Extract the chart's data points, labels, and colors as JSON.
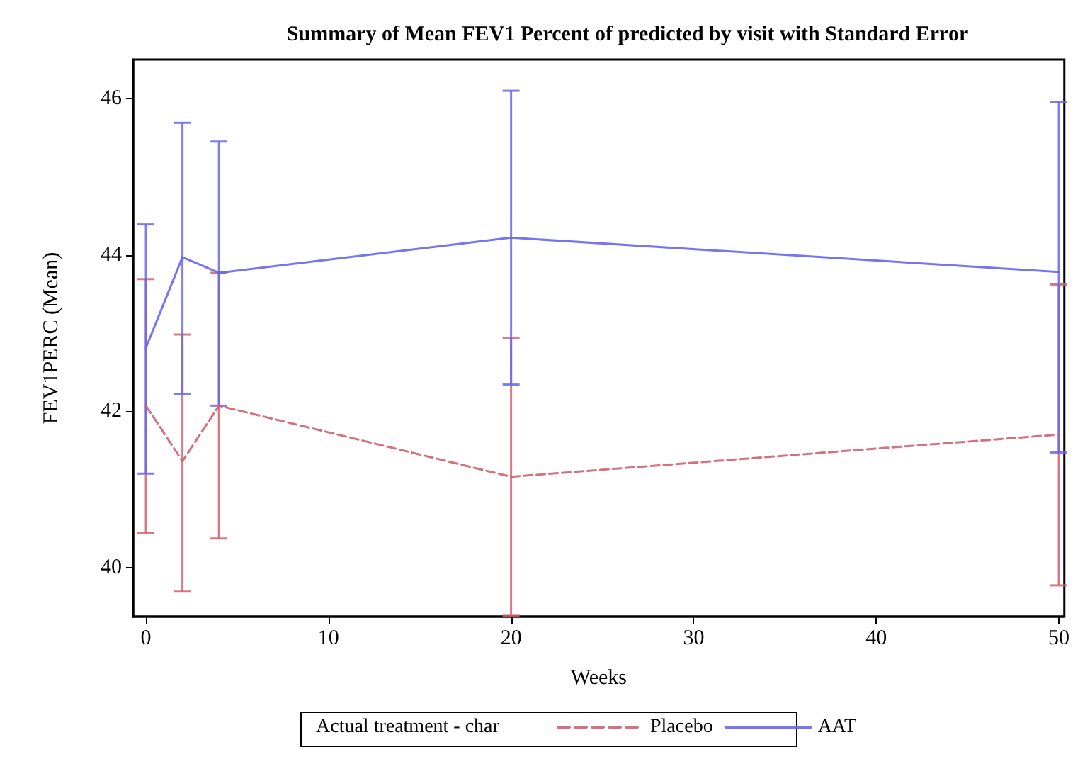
{
  "chart_data": {
    "type": "line",
    "title": "Summary of Mean FEV1 Percent of predicted by visit with Standard Error",
    "xlabel": "Weeks",
    "ylabel": "FEV1PERC (Mean)",
    "legend_title": "Actual treatment - char",
    "x": [
      0,
      2,
      4,
      20,
      50
    ],
    "series": [
      {
        "name": "Placebo",
        "color": "#d06070",
        "line_style": "dashed",
        "values": [
          42.07,
          41.36,
          42.07,
          41.16,
          41.7
        ],
        "errors": [
          [
            40.44,
            43.69
          ],
          [
            39.69,
            42.98
          ],
          [
            40.37,
            43.77
          ],
          [
            39.38,
            42.93
          ],
          [
            39.77,
            43.62
          ]
        ]
      },
      {
        "name": "AAT",
        "color": "#6666ee",
        "line_style": "solid",
        "values": [
          42.81,
          43.97,
          43.77,
          44.22,
          43.78
        ],
        "errors": [
          [
            41.2,
            44.39
          ],
          [
            42.22,
            45.69
          ],
          [
            42.07,
            45.45
          ],
          [
            42.34,
            46.1
          ],
          [
            41.47,
            45.96
          ]
        ]
      }
    ],
    "xlim": [
      -0.7,
      50.3
    ],
    "xticks": [
      0,
      10,
      20,
      30,
      40,
      50
    ],
    "ylim": [
      39.37,
      46.5
    ],
    "yticks": [
      40,
      42,
      44,
      46
    ],
    "grid": false,
    "legend": "bottom",
    "marker": "none"
  }
}
